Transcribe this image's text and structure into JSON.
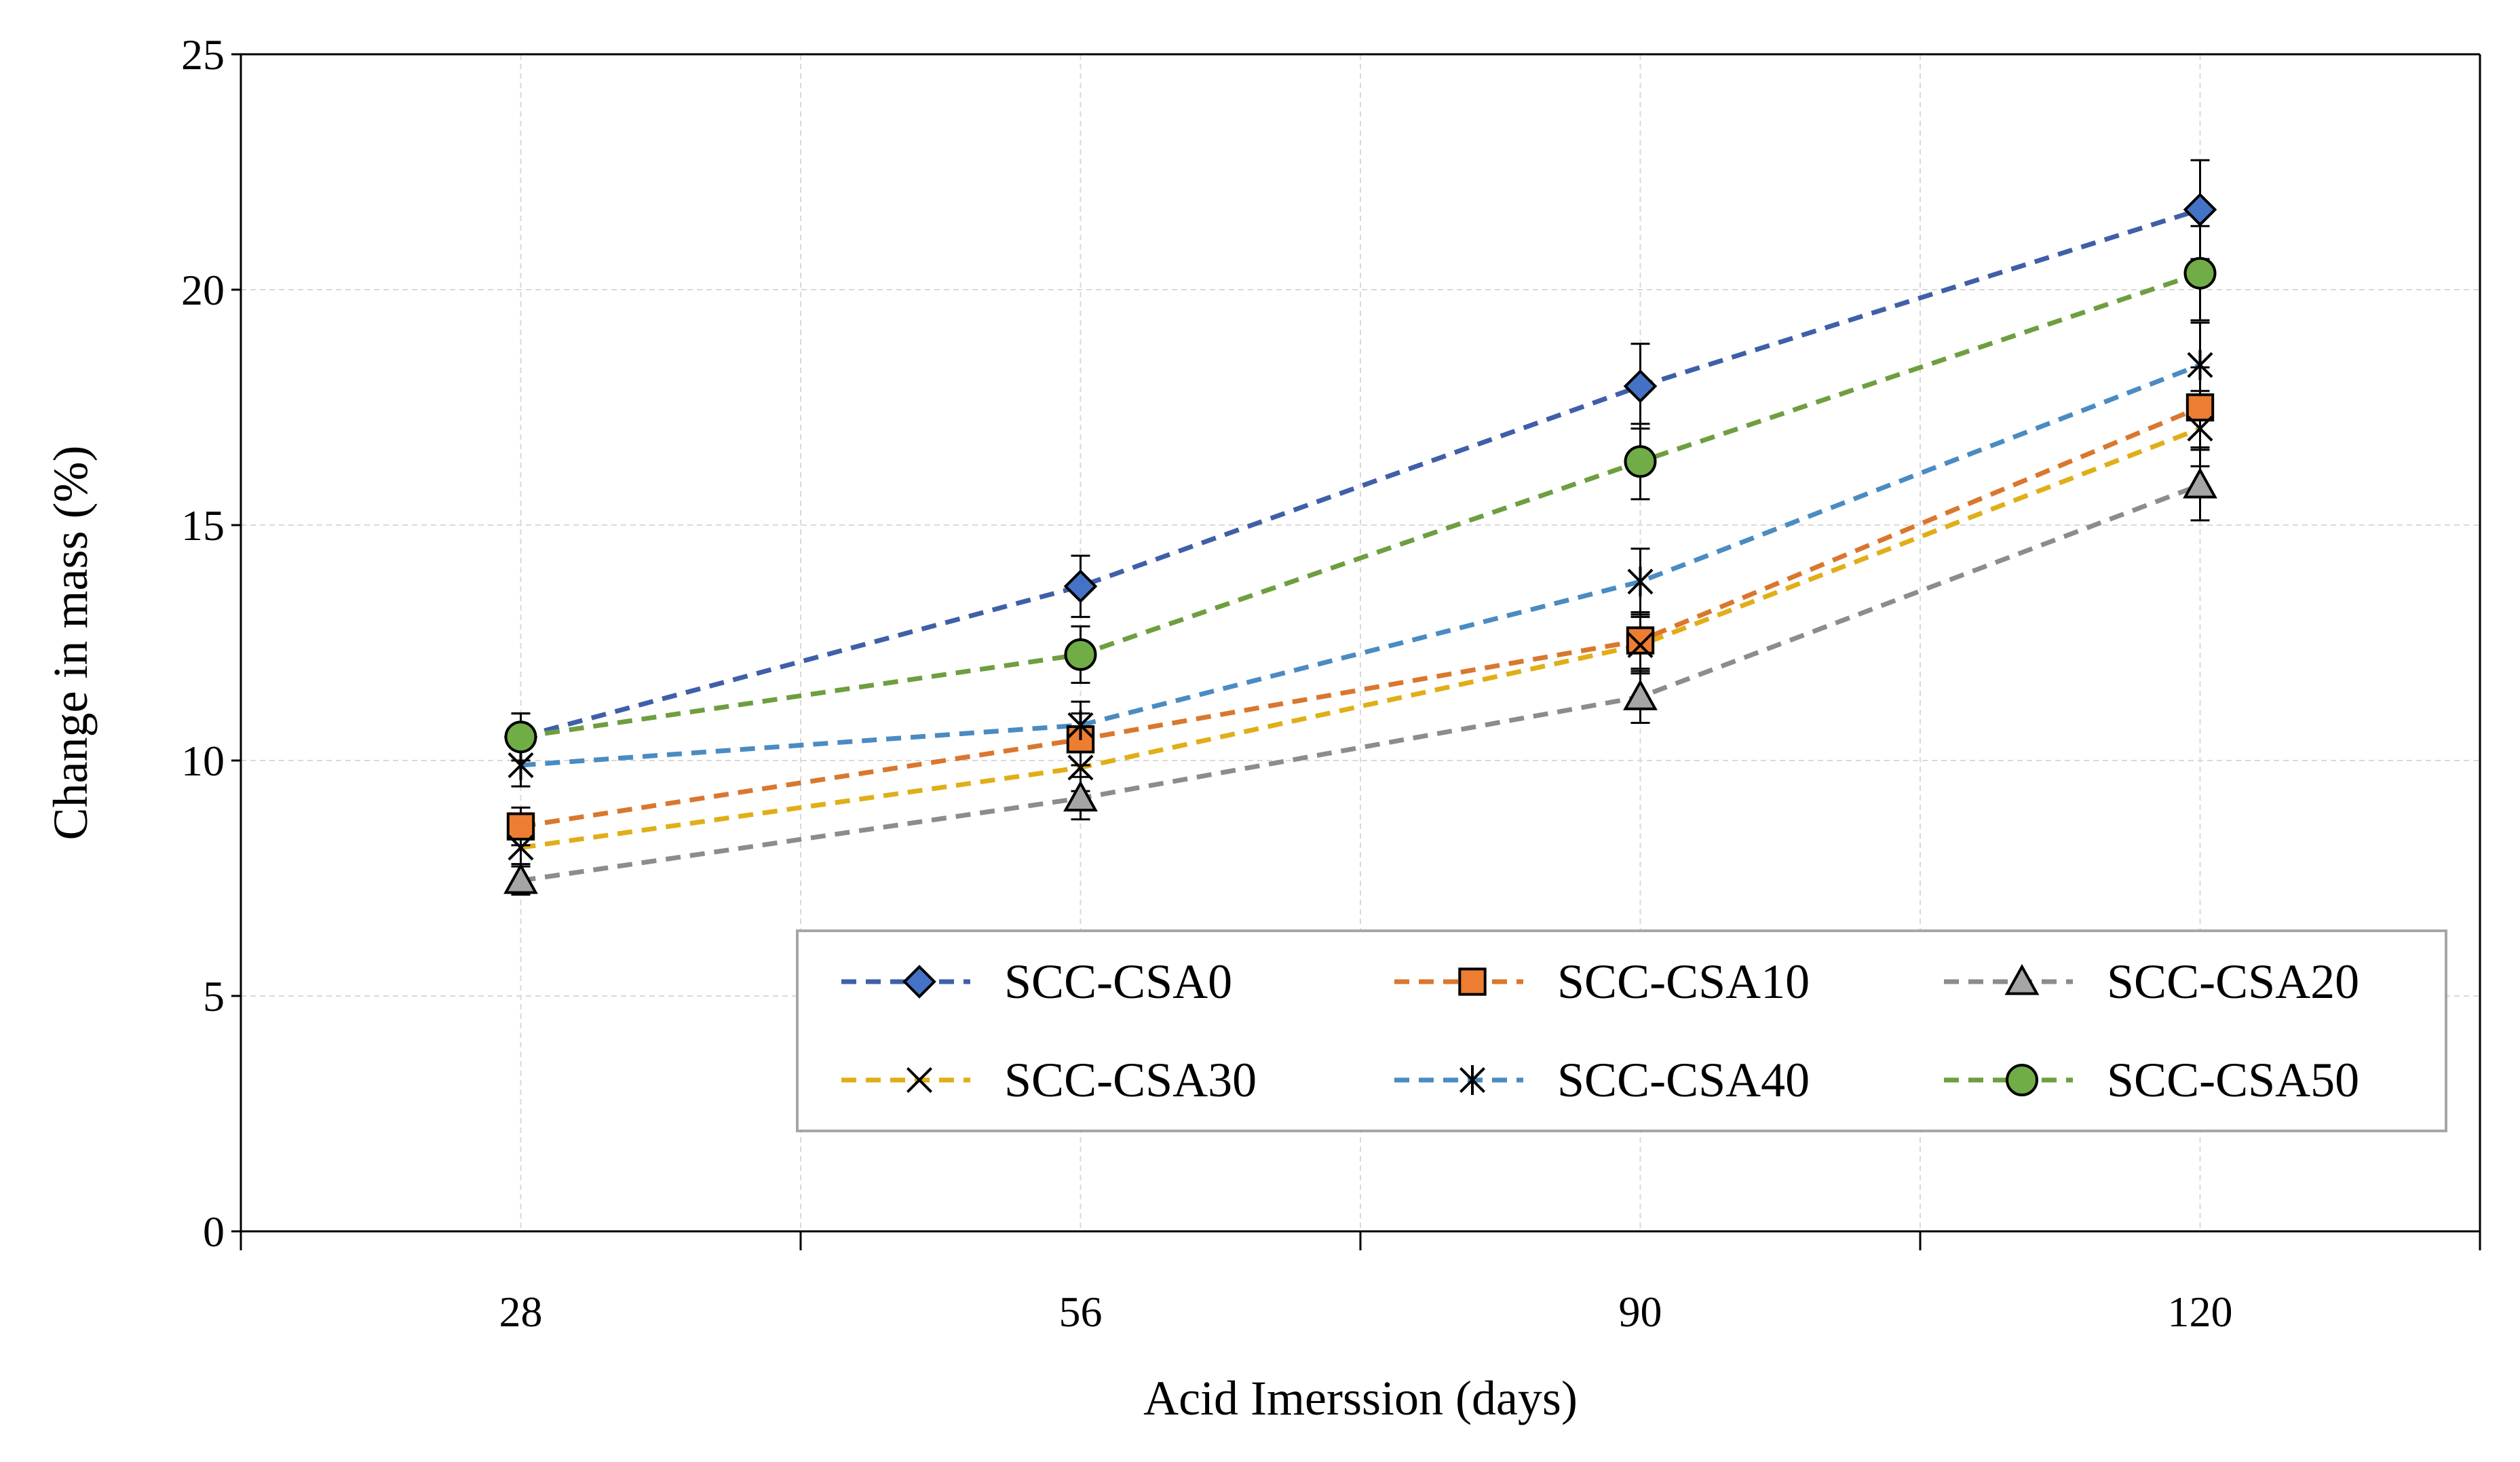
{
  "chart_data": {
    "type": "line",
    "title": "",
    "xlabel": "Acid Imerssion (days)",
    "ylabel": "Change in mass (%)",
    "categories": [
      "28",
      "56",
      "90",
      "120"
    ],
    "ylim": [
      0,
      25
    ],
    "yticks": [
      "0",
      "5",
      "10",
      "15",
      "20",
      "25"
    ],
    "grid": true,
    "legend_position": "bottom-right",
    "series": [
      {
        "name": "SCC-CSA0",
        "color": "#3F5FA8",
        "marker": "diamond",
        "marker_fill": "#4472C4",
        "values": [
          10.5,
          13.7,
          17.95,
          21.7
        ],
        "errors": [
          0.5,
          0.65,
          0.9,
          1.05
        ]
      },
      {
        "name": "SCC-CSA10",
        "color": "#D9772E",
        "marker": "square",
        "marker_fill": "#ED7D31",
        "values": [
          8.6,
          10.45,
          12.55,
          17.5
        ],
        "errors": [
          0.4,
          0.55,
          0.6,
          0.85
        ]
      },
      {
        "name": "SCC-CSA20",
        "color": "#8C8C8C",
        "marker": "triangle",
        "marker_fill": "#A5A5A5",
        "values": [
          7.45,
          9.2,
          11.35,
          15.85
        ],
        "errors": [
          0.3,
          0.45,
          0.55,
          0.75
        ]
      },
      {
        "name": "SCC-CSA30",
        "color": "#E0AE17",
        "marker": "x",
        "marker_fill": "#FFC000",
        "values": [
          8.15,
          9.85,
          12.45,
          17.05
        ],
        "errors": [
          0.35,
          0.5,
          0.6,
          0.8
        ]
      },
      {
        "name": "SCC-CSA40",
        "color": "#4A8BC2",
        "marker": "star",
        "marker_fill": "#5B9BD5",
        "values": [
          9.9,
          10.75,
          13.8,
          18.4
        ],
        "errors": [
          0.45,
          0.5,
          0.7,
          0.9
        ]
      },
      {
        "name": "SCC-CSA50",
        "color": "#6E9E40",
        "marker": "circle",
        "marker_fill": "#70AD47",
        "values": [
          10.5,
          12.25,
          16.35,
          20.35
        ],
        "errors": [
          0.5,
          0.6,
          0.8,
          1.0
        ]
      }
    ]
  }
}
